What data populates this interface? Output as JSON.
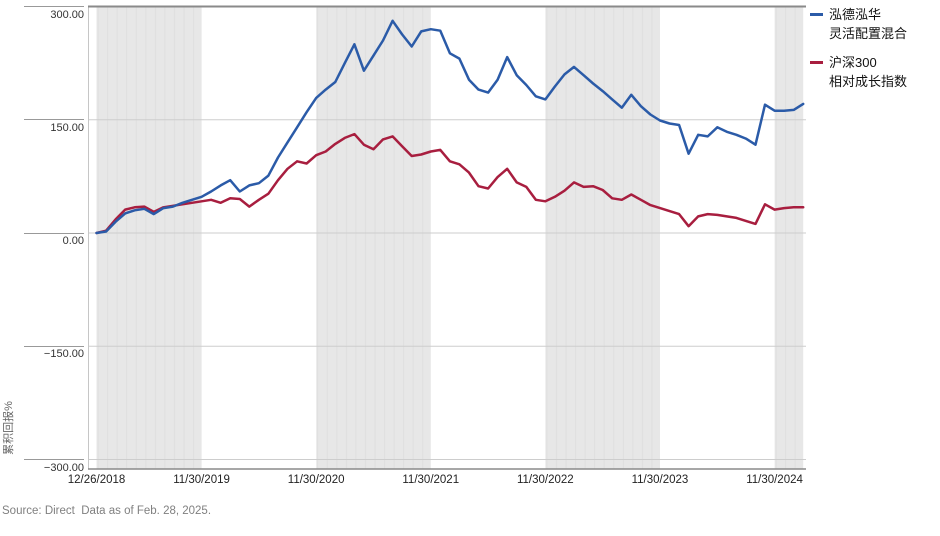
{
  "legend": {
    "items": [
      {
        "name": "泓德泓华灵活配置混合",
        "lines": [
          "泓德泓华",
          "灵活配置混合"
        ],
        "color": "#2b5ba8"
      },
      {
        "name": "沪深300相对成长指数",
        "lines": [
          "沪深300",
          "相对成长指数"
        ],
        "color": "#a81e3f"
      }
    ]
  },
  "y_axis": {
    "title": "累积回报%",
    "ticks": [
      {
        "label": "300.00",
        "value": 300
      },
      {
        "label": "150.00",
        "value": 150
      },
      {
        "label": "0.00",
        "value": 0
      },
      {
        "label": "−150.00",
        "value": -150
      },
      {
        "label": "−300.00",
        "value": -300
      }
    ]
  },
  "x_axis": {
    "ticks": [
      {
        "label": "12/26/2018",
        "index": 0
      },
      {
        "label": "11/30/2019",
        "index": 11
      },
      {
        "label": "11/30/2020",
        "index": 23
      },
      {
        "label": "11/30/2021",
        "index": 35
      },
      {
        "label": "11/30/2022",
        "index": 47
      },
      {
        "label": "11/30/2023",
        "index": 59
      },
      {
        "label": "11/30/2024",
        "index": 71
      }
    ]
  },
  "source_note": "Source: Direct  Data as of Feb. 28, 2025.",
  "chart_data": {
    "type": "line",
    "title": "",
    "xlabel": "",
    "ylabel": "累积回报%",
    "ylim": [
      -300,
      300
    ],
    "y_gridlines": [
      300,
      150,
      0,
      -150,
      -300
    ],
    "grid": true,
    "legend_position": "top-right",
    "band_fill": "#e7e7e7",
    "band_stripe": "#dfdfdf",
    "gridline_color": "#cdcdcd",
    "border_color": "#8a8a8a",
    "shaded_periods_note": "alternating calendar-year shading, index ranges into x[]",
    "shaded_periods": [
      [
        0,
        11
      ],
      [
        23,
        35
      ],
      [
        47,
        59
      ],
      [
        71,
        74
      ]
    ],
    "x": [
      "2018-12-26",
      "2019-01",
      "2019-02",
      "2019-03",
      "2019-04",
      "2019-05",
      "2019-06",
      "2019-07",
      "2019-08",
      "2019-09",
      "2019-10",
      "2019-11",
      "2019-12",
      "2020-01",
      "2020-02",
      "2020-03",
      "2020-04",
      "2020-05",
      "2020-06",
      "2020-07",
      "2020-08",
      "2020-09",
      "2020-10",
      "2020-11",
      "2020-12",
      "2021-01",
      "2021-02",
      "2021-03",
      "2021-04",
      "2021-05",
      "2021-06",
      "2021-07",
      "2021-08",
      "2021-09",
      "2021-10",
      "2021-11",
      "2021-12",
      "2022-01",
      "2022-02",
      "2022-03",
      "2022-04",
      "2022-05",
      "2022-06",
      "2022-07",
      "2022-08",
      "2022-09",
      "2022-10",
      "2022-11",
      "2022-12",
      "2023-01",
      "2023-02",
      "2023-03",
      "2023-04",
      "2023-05",
      "2023-06",
      "2023-07",
      "2023-08",
      "2023-09",
      "2023-10",
      "2023-11",
      "2023-12",
      "2024-01",
      "2024-02",
      "2024-03",
      "2024-04",
      "2024-05",
      "2024-06",
      "2024-07",
      "2024-08",
      "2024-09",
      "2024-10",
      "2024-11",
      "2024-12",
      "2025-01",
      "2025-02"
    ],
    "series": [
      {
        "name": "泓德泓华灵活配置混合",
        "color": "#2b5ba8",
        "values": [
          0,
          2,
          15,
          26,
          30,
          32,
          25,
          33,
          35,
          40,
          44,
          48,
          55,
          63,
          70,
          55,
          63,
          66,
          76,
          100,
          120,
          140,
          160,
          179,
          190,
          200,
          225,
          250,
          215,
          235,
          255,
          281,
          263,
          247,
          267,
          270,
          268,
          238,
          231,
          203,
          190,
          186,
          203,
          233,
          209,
          196,
          181,
          177,
          194,
          210,
          220,
          209,
          198,
          188,
          177,
          166,
          183,
          168,
          157,
          149,
          145,
          143,
          105,
          130,
          128,
          140,
          134,
          130,
          125,
          117,
          170,
          162,
          162,
          163,
          171
        ]
      },
      {
        "name": "沪深300相对成长指数",
        "color": "#a81e3f",
        "values": [
          0,
          3,
          18,
          31,
          34,
          35,
          28,
          34,
          36,
          38,
          40,
          42,
          44,
          40,
          46,
          45,
          35,
          44,
          52,
          70,
          85,
          95,
          92,
          103,
          108,
          118,
          126,
          131,
          117,
          111,
          124,
          128,
          115,
          102,
          104,
          108,
          110,
          95,
          91,
          80,
          62,
          59,
          74,
          85,
          67,
          61,
          44,
          42,
          48,
          56,
          67,
          61,
          62,
          57,
          46,
          44,
          51,
          44,
          37,
          33,
          29,
          25,
          9,
          22,
          25,
          24,
          22,
          20,
          16,
          12,
          38,
          31,
          33,
          34,
          34
        ]
      }
    ]
  }
}
